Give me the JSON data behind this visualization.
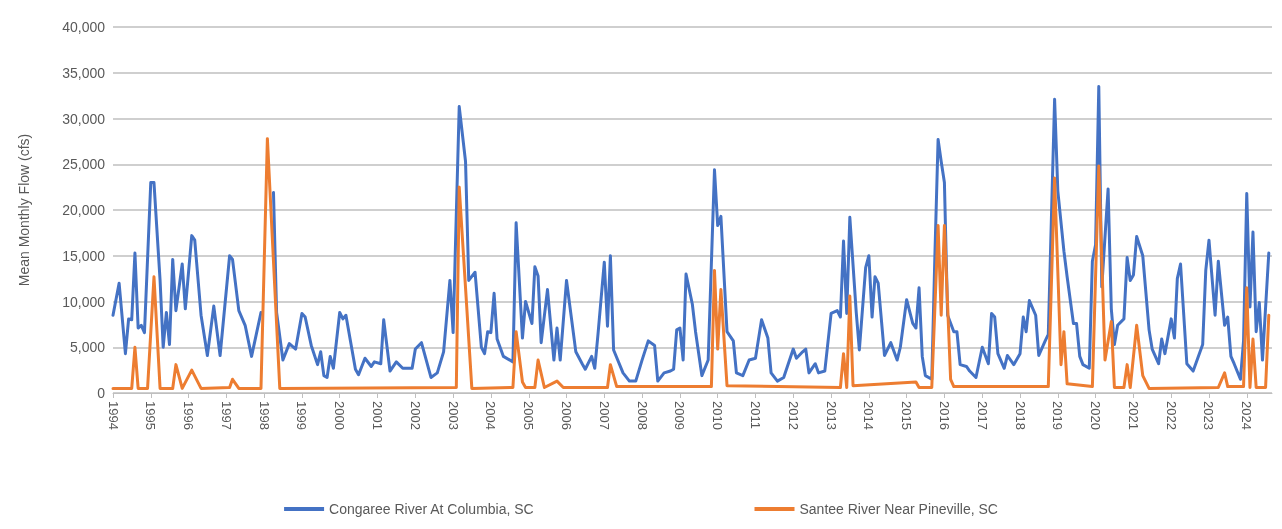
{
  "chart_data": {
    "type": "line",
    "ylabel": "Mean Monthly Flow (cfs)",
    "grid": "y",
    "legend": "bottom",
    "marker": "none",
    "line_style": "solid",
    "xlim": [
      "1994-01",
      "2024-09"
    ],
    "xticks": [
      "1994",
      "1995",
      "1996",
      "1997",
      "1998",
      "1999",
      "2000",
      "2001",
      "2002",
      "2003",
      "2004",
      "2005",
      "2006",
      "2007",
      "2008",
      "2009",
      "2010",
      "2011",
      "2012",
      "2013",
      "2014",
      "2015",
      "2016",
      "2017",
      "2018",
      "2019",
      "2020",
      "2021",
      "2022",
      "2023",
      "2024"
    ],
    "ylim": [
      0,
      40000
    ],
    "yticks": [
      {
        "value": 0,
        "label": "0"
      },
      {
        "value": 5000,
        "label": "5,000"
      },
      {
        "value": 10000,
        "label": "10,000"
      },
      {
        "value": 15000,
        "label": "15,000"
      },
      {
        "value": 20000,
        "label": "20,000"
      },
      {
        "value": 25000,
        "label": "25,000"
      },
      {
        "value": 30000,
        "label": "30,000"
      },
      {
        "value": 35000,
        "label": "35,000"
      },
      {
        "value": 40000,
        "label": "40,000"
      }
    ],
    "series": [
      {
        "name": "Congaree River At Columbia, SC",
        "color": "#4472c4",
        "x": [
          "1994-01",
          "1994-03",
          "1994-05",
          "1994-06",
          "1994-07",
          "1994-08",
          "1994-09",
          "1994-10",
          "1994-11",
          "1995-01",
          "1995-02",
          "1995-04",
          "1995-05",
          "1995-06",
          "1995-07",
          "1995-08",
          "1995-09",
          "1995-11",
          "1995-12",
          "1996-02",
          "1996-03",
          "1996-05",
          "1996-07",
          "1996-09",
          "1996-11",
          "1997-02",
          "1997-03",
          "1997-05",
          "1997-07",
          "1997-09",
          "1997-12",
          "1998-02",
          "1998-04",
          "1998-05",
          "1998-07",
          "1998-09",
          "1998-11",
          "1999-01",
          "1999-02",
          "1999-04",
          "1999-06",
          "1999-07",
          "1999-08",
          "1999-09",
          "1999-10",
          "1999-11",
          "2000-01",
          "2000-02",
          "2000-03",
          "2000-06",
          "2000-07",
          "2000-09",
          "2000-11",
          "2000-12",
          "2001-02",
          "2001-03",
          "2001-05",
          "2001-07",
          "2001-09",
          "2001-12",
          "2002-01",
          "2002-03",
          "2002-06",
          "2002-08",
          "2002-10",
          "2002-12",
          "2003-01",
          "2003-03",
          "2003-05",
          "2003-06",
          "2003-08",
          "2003-10",
          "2003-11",
          "2003-12",
          "2004-01",
          "2004-02",
          "2004-03",
          "2004-05",
          "2004-08",
          "2004-09",
          "2004-11",
          "2004-12",
          "2005-02",
          "2005-03",
          "2005-04",
          "2005-05",
          "2005-07",
          "2005-09",
          "2005-10",
          "2005-11",
          "2006-01",
          "2006-04",
          "2006-06",
          "2006-07",
          "2006-09",
          "2006-10",
          "2006-11",
          "2007-01",
          "2007-02",
          "2007-03",
          "2007-04",
          "2007-07",
          "2007-09",
          "2007-11",
          "2008-01",
          "2008-03",
          "2008-05",
          "2008-06",
          "2008-08",
          "2008-10",
          "2008-11",
          "2008-12",
          "2009-01",
          "2009-02",
          "2009-03",
          "2009-05",
          "2009-06",
          "2009-08",
          "2009-10",
          "2009-12",
          "2010-01",
          "2010-02",
          "2010-04",
          "2010-06",
          "2010-07",
          "2010-09",
          "2010-11",
          "2011-01",
          "2011-03",
          "2011-05",
          "2011-06",
          "2011-08",
          "2011-10",
          "2012-01",
          "2012-02",
          "2012-04",
          "2012-05",
          "2012-06",
          "2012-08",
          "2012-09",
          "2012-11",
          "2013-01",
          "2013-03",
          "2013-04",
          "2013-05",
          "2013-06",
          "2013-07",
          "2013-09",
          "2013-10",
          "2013-12",
          "2014-01",
          "2014-02",
          "2014-03",
          "2014-04",
          "2014-06",
          "2014-08",
          "2014-10",
          "2014-11",
          "2015-01",
          "2015-03",
          "2015-04",
          "2015-05",
          "2015-06",
          "2015-07",
          "2015-09",
          "2015-10",
          "2015-11",
          "2015-12",
          "2016-01",
          "2016-02",
          "2016-04",
          "2016-05",
          "2016-06",
          "2016-08",
          "2016-09",
          "2016-11",
          "2017-01",
          "2017-03",
          "2017-04",
          "2017-05",
          "2017-06",
          "2017-08",
          "2017-09",
          "2017-11",
          "2018-01",
          "2018-02",
          "2018-03",
          "2018-04",
          "2018-06",
          "2018-07",
          "2018-09",
          "2018-10",
          "2018-12",
          "2019-01",
          "2019-03",
          "2019-04",
          "2019-06",
          "2019-07",
          "2019-08",
          "2019-09",
          "2019-11",
          "2019-12",
          "2020-01",
          "2020-02",
          "2020-03",
          "2020-05",
          "2020-06",
          "2020-07",
          "2020-08",
          "2020-10",
          "2020-11",
          "2020-12",
          "2021-01",
          "2021-02",
          "2021-04",
          "2021-06",
          "2021-07",
          "2021-09",
          "2021-10",
          "2021-11",
          "2022-01",
          "2022-02",
          "2022-03",
          "2022-04",
          "2022-06",
          "2022-08",
          "2022-11",
          "2022-12",
          "2023-01",
          "2023-03",
          "2023-04",
          "2023-06",
          "2023-07",
          "2023-08",
          "2023-09",
          "2023-11",
          "2023-12",
          "2024-01",
          "2024-02",
          "2024-03",
          "2024-04",
          "2024-05",
          "2024-06",
          "2024-08"
        ],
        "values": [
          8500,
          12000,
          4300,
          8100,
          8000,
          15300,
          7100,
          7400,
          6600,
          23000,
          23000,
          12300,
          5000,
          8800,
          5300,
          14600,
          9000,
          14100,
          9200,
          17200,
          16700,
          8500,
          4100,
          9500,
          4100,
          15000,
          14600,
          9000,
          7400,
          4000,
          8800,
          null,
          21900,
          8800,
          3600,
          5400,
          4800,
          8700,
          8300,
          5200,
          3100,
          4500,
          1900,
          1700,
          4000,
          2700,
          8800,
          8100,
          8500,
          2600,
          2000,
          3800,
          2900,
          3400,
          3200,
          8000,
          2400,
          3400,
          2700,
          2700,
          4800,
          5500,
          1700,
          2200,
          4500,
          12300,
          6600,
          31300,
          25300,
          12300,
          13200,
          5000,
          4300,
          6700,
          6600,
          10900,
          5900,
          4000,
          3400,
          18600,
          6000,
          10000,
          7600,
          13800,
          12800,
          5500,
          11300,
          3600,
          7100,
          3600,
          12300,
          4500,
          3200,
          2600,
          4000,
          2700,
          6400,
          14300,
          7300,
          15000,
          4700,
          2200,
          1300,
          1300,
          3600,
          5700,
          5200,
          1300,
          2200,
          2400,
          2600,
          6900,
          7100,
          3600,
          13000,
          9700,
          6700,
          1900,
          3600,
          24400,
          18300,
          19300,
          6700,
          5700,
          2200,
          1900,
          3600,
          3800,
          8000,
          6000,
          2200,
          1300,
          1700,
          4800,
          3800,
          4500,
          4800,
          2200,
          3200,
          2200,
          2400,
          8700,
          9000,
          8300,
          16600,
          8700,
          19200,
          8800,
          4700,
          13700,
          15000,
          8300,
          12700,
          12000,
          4100,
          5500,
          3600,
          5000,
          10200,
          7600,
          7100,
          11500,
          4000,
          1900,
          1500,
          15000,
          27700,
          25300,
          23000,
          8500,
          6700,
          6700,
          3100,
          2900,
          2400,
          1700,
          5000,
          3200,
          8700,
          8300,
          4300,
          2700,
          4100,
          3100,
          4300,
          8300,
          6700,
          10100,
          8500,
          4100,
          5700,
          6400,
          32100,
          22100,
          15500,
          12700,
          7600,
          7600,
          4000,
          3100,
          2700,
          14400,
          16200,
          33500,
          11600,
          22300,
          9200,
          5300,
          7400,
          8100,
          14800,
          12300,
          12900,
          17100,
          15000,
          6900,
          4800,
          3200,
          5900,
          4300,
          8100,
          6000,
          12500,
          14100,
          3200,
          2400,
          5300,
          13400,
          16700,
          8500,
          14400,
          7400,
          8300,
          4000,
          3200,
          1500,
          5700,
          21800,
          9400,
          17600,
          6700,
          9900,
          3600,
          15300
        ]
      },
      {
        "name": "Santee River Near Pineville, SC",
        "color": "#ed7d31",
        "x": [
          "1994-01",
          "1994-07",
          "1994-08",
          "1994-09",
          "1994-12",
          "1995-02",
          "1995-04",
          "1995-08",
          "1995-09",
          "1995-11",
          "1996-02",
          "1996-05",
          "1997-02",
          "1997-03",
          "1997-05",
          "1997-12",
          "1998-02",
          "1998-06",
          "2003-02",
          "2003-03",
          "2003-07",
          "2004-08",
          "2004-09",
          "2004-11",
          "2004-12",
          "2005-03",
          "2005-04",
          "2005-06",
          "2005-10",
          "2005-12",
          "2007-02",
          "2007-03",
          "2007-05",
          "2009-11",
          "2009-12",
          "2010-01",
          "2010-02",
          "2010-04",
          "2013-04",
          "2013-05",
          "2013-06",
          "2013-07",
          "2013-08",
          "2015-04",
          "2015-05",
          "2015-09",
          "2015-11",
          "2015-12",
          "2016-01",
          "2016-03",
          "2016-04",
          "2018-10",
          "2018-12",
          "2019-02",
          "2019-03",
          "2019-04",
          "2019-12",
          "2020-02",
          "2020-04",
          "2020-06",
          "2020-07",
          "2020-10",
          "2020-11",
          "2020-12",
          "2021-02",
          "2021-04",
          "2021-06",
          "2023-04",
          "2023-06",
          "2023-07",
          "2023-12",
          "2024-01",
          "2024-02",
          "2024-03",
          "2024-04",
          "2024-07",
          "2024-08"
        ],
        "values": [
          500,
          500,
          5000,
          500,
          500,
          12700,
          500,
          500,
          3100,
          500,
          2500,
          500,
          600,
          1500,
          500,
          500,
          27800,
          500,
          600,
          22500,
          500,
          600,
          6700,
          1200,
          600,
          600,
          3600,
          600,
          1300,
          600,
          600,
          3100,
          700,
          700,
          13400,
          4800,
          11300,
          800,
          600,
          4300,
          600,
          10600,
          800,
          1200,
          600,
          600,
          18300,
          8500,
          18300,
          1500,
          700,
          700,
          23500,
          3100,
          6700,
          1000,
          700,
          24800,
          3600,
          7800,
          600,
          600,
          3100,
          600,
          7400,
          1900,
          500,
          600,
          2200,
          700,
          700,
          11500,
          600,
          5900,
          600,
          600,
          8500
        ]
      }
    ]
  }
}
